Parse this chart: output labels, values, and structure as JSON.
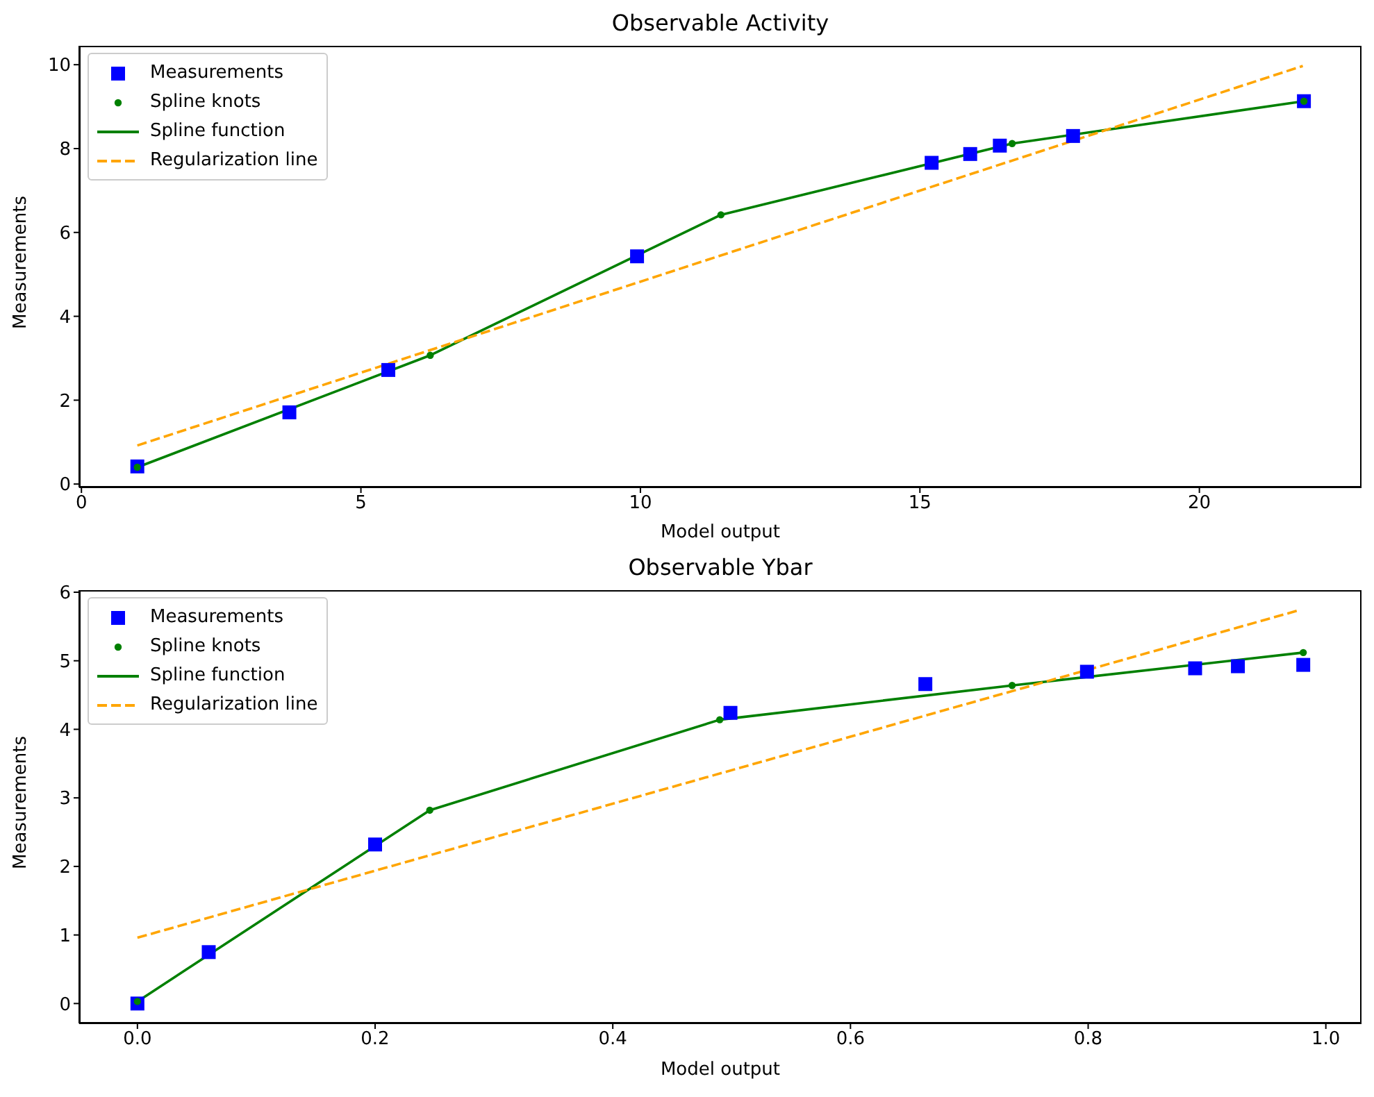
{
  "chart_data": [
    {
      "type": "scatter",
      "title": "Observable Activity",
      "xlabel": "Model output",
      "ylabel": "Measurements",
      "xlim": [
        -0.04,
        22.9
      ],
      "ylim": [
        -0.08,
        10.45
      ],
      "xticks": [
        0,
        5,
        10,
        15,
        20
      ],
      "yticks": [
        0,
        2,
        4,
        6,
        8,
        10
      ],
      "grid": false,
      "legend": "top left",
      "series": [
        {
          "name": "Measurements",
          "type": "scatter",
          "marker": "square",
          "color": "#0000ff",
          "x": [
            1.0,
            3.72,
            5.49,
            9.94,
            15.21,
            15.9,
            16.43,
            17.74,
            21.87
          ],
          "values": [
            0.42,
            1.71,
            2.72,
            5.43,
            7.66,
            7.87,
            8.07,
            8.3,
            9.13
          ]
        },
        {
          "name": "Spline knots",
          "type": "scatter",
          "marker": "circle",
          "color": "#008000",
          "x": [
            1.0,
            6.24,
            11.44,
            16.65,
            21.87
          ],
          "values": [
            0.4,
            3.07,
            6.42,
            8.12,
            9.13
          ]
        },
        {
          "name": "Spline function",
          "type": "line",
          "marker": "none",
          "line_style": "solid",
          "color": "#008000",
          "x": [
            1.0,
            6.24,
            11.44,
            16.65,
            21.87
          ],
          "values": [
            0.4,
            3.07,
            6.42,
            8.12,
            9.13
          ]
        },
        {
          "name": "Regularization line",
          "type": "line",
          "marker": "none",
          "line_style": "dashed",
          "color": "#ffa500",
          "x": [
            1.0,
            21.85
          ],
          "values": [
            0.92,
            9.97
          ]
        }
      ]
    },
    {
      "type": "scatter",
      "title": "Observable Ybar",
      "xlabel": "Model output",
      "ylabel": "Measurements",
      "xlim": [
        -0.049,
        1.03
      ],
      "ylim": [
        -0.29,
        6.03
      ],
      "xticks": [
        {
          "value": 0,
          "label": "0.0"
        },
        {
          "value": 0.2,
          "label": "0.2"
        },
        {
          "value": 0.4,
          "label": "0.4"
        },
        {
          "value": 0.6,
          "label": "0.6"
        },
        {
          "value": 0.8,
          "label": "0.8"
        },
        {
          "value": 1,
          "label": "1.0"
        }
      ],
      "yticks": [
        0,
        1,
        2,
        3,
        4,
        5,
        6
      ],
      "grid": false,
      "legend": "top left",
      "series": [
        {
          "name": "Measurements",
          "type": "scatter",
          "marker": "square",
          "color": "#0000ff",
          "x": [
            0.0,
            0.06,
            0.2,
            0.499,
            0.663,
            0.799,
            0.89,
            0.926,
            0.981
          ],
          "values": [
            0.0,
            0.75,
            2.32,
            4.24,
            4.66,
            4.84,
            4.89,
            4.92,
            4.94
          ]
        },
        {
          "name": "Spline knots",
          "type": "scatter",
          "marker": "circle",
          "color": "#008000",
          "x": [
            0.0,
            0.246,
            0.49,
            0.736,
            0.981
          ],
          "values": [
            0.03,
            2.82,
            4.14,
            4.64,
            5.12
          ]
        },
        {
          "name": "Spline function",
          "type": "line",
          "marker": "none",
          "line_style": "solid",
          "color": "#008000",
          "x": [
            0.0,
            0.246,
            0.49,
            0.736,
            0.981
          ],
          "values": [
            0.03,
            2.82,
            4.14,
            4.64,
            5.12
          ]
        },
        {
          "name": "Regularization line",
          "type": "line",
          "marker": "none",
          "line_style": "dashed",
          "color": "#ffa500",
          "x": [
            0.0,
            0.978
          ],
          "values": [
            0.96,
            5.74
          ]
        }
      ]
    }
  ]
}
